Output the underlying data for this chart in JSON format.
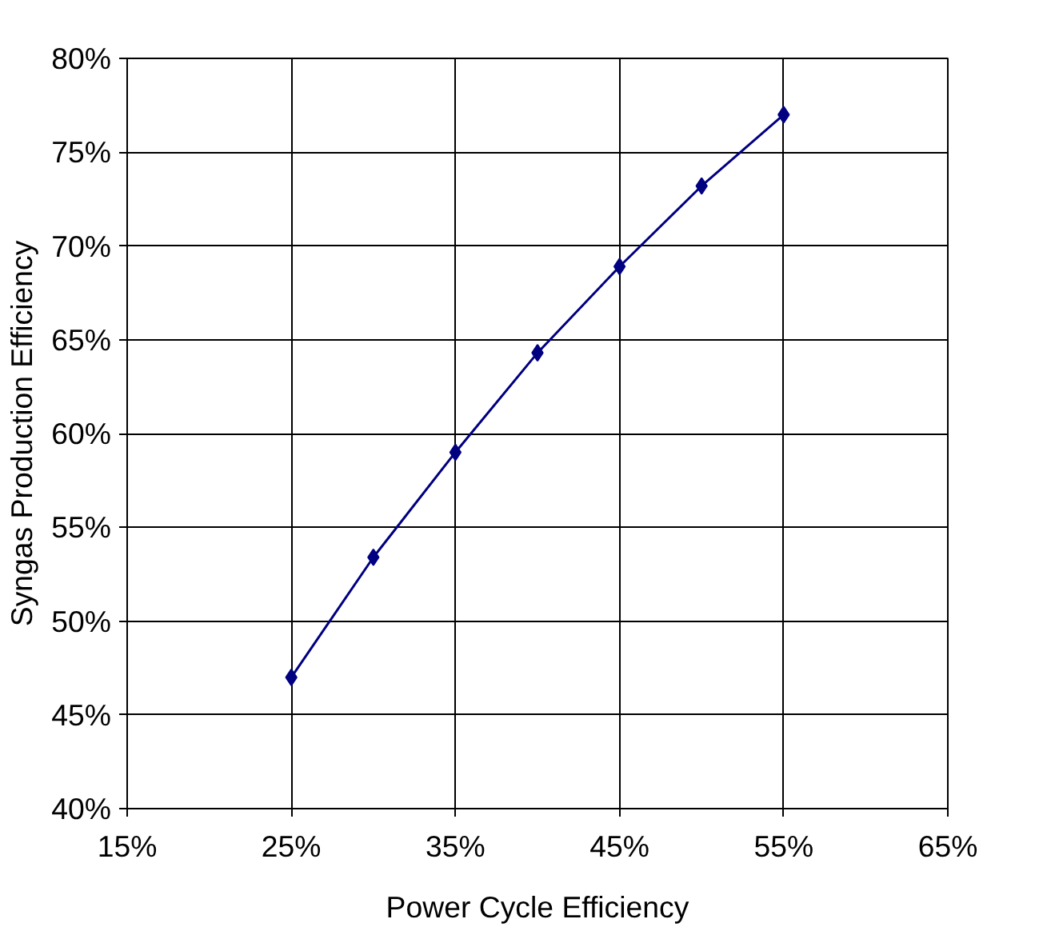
{
  "chart_data": {
    "type": "line",
    "xlabel": "Power Cycle Efficiency",
    "ylabel": "Syngas Production Efficiency",
    "x": [
      25,
      30,
      35,
      40,
      45,
      50,
      55
    ],
    "series": [
      {
        "color": "#000080",
        "values": [
          47.0,
          53.4,
          59.0,
          64.3,
          68.9,
          73.2,
          77.0
        ]
      }
    ],
    "xlim": [
      15,
      65
    ],
    "ylim": [
      40,
      80
    ],
    "xticks": [
      {
        "value": 15,
        "label": "15%"
      },
      {
        "value": 25,
        "label": "25%"
      },
      {
        "value": 35,
        "label": "35%"
      },
      {
        "value": 45,
        "label": "45%"
      },
      {
        "value": 55,
        "label": "55%"
      },
      {
        "value": 65,
        "label": "65%"
      }
    ],
    "yticks": [
      {
        "value": 40,
        "label": "40%"
      },
      {
        "value": 45,
        "label": "45%"
      },
      {
        "value": 50,
        "label": "50%"
      },
      {
        "value": 55,
        "label": "55%"
      },
      {
        "value": 60,
        "label": "60%"
      },
      {
        "value": 65,
        "label": "65%"
      },
      {
        "value": 70,
        "label": "70%"
      },
      {
        "value": 75,
        "label": "75%"
      },
      {
        "value": 80,
        "label": "80%"
      }
    ],
    "grid": true,
    "marker": "diamond",
    "line_style": "solid"
  }
}
